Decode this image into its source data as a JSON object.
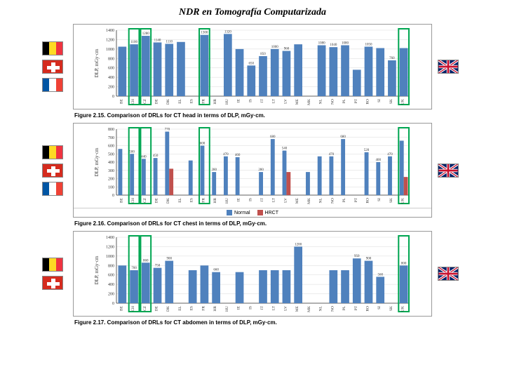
{
  "title": "NDR en Tomografía Computarizada",
  "colors": {
    "bar": "#4f81bd",
    "bar2": "#c0504d",
    "highlight_stroke": "#00a651",
    "axis": "#333333",
    "grid": "#d9d9d9",
    "be": [
      "#000000",
      "#fdda24",
      "#ef3340"
    ],
    "ch_bg": "#d52b1e",
    "fr": [
      "#0055a4",
      "#ffffff",
      "#ef4135"
    ],
    "uk_bg": "#012169",
    "uk_red": "#c8102e",
    "uk_white": "#ffffff"
  },
  "countries": [
    "BE",
    "CH",
    "CZ",
    "DE",
    "DK",
    "EL",
    "ES",
    "FR",
    "HR",
    "HU",
    "IE",
    "IS",
    "IT",
    "LT",
    "LV",
    "ME",
    "MK",
    "NL",
    "NO",
    "PL",
    "PT",
    "RO",
    "SI",
    "SK",
    "UK"
  ],
  "charts": [
    {
      "ylabel": "DLP, mGy·cm",
      "ymax": 1400,
      "ytick": 200,
      "caption": "Figure 2.15.  Comparison of DRLs for CT head in terms of DLP,  mGy·cm.",
      "highlights": [
        "CH",
        "CZ",
        "FR",
        "UK"
      ],
      "series": [
        {
          "name": "Normal",
          "color_key": "bar",
          "values": {
            "BE": 1050,
            "CH": 1100,
            "CZ": 1280,
            "DE": 1140,
            "DK": 1110,
            "EL": 1150,
            "FR": 1300,
            "HU": 1320,
            "IE": 1000,
            "IS": 650,
            "IT": 850,
            "LT": 1000,
            "LV": 960,
            "ME": 1100,
            "NL": 1080,
            "NO": 1040,
            "PL": 1080,
            "PT": 560,
            "RO": 1050,
            "SI": 1020,
            "SK": 760,
            "UK": 1020
          }
        }
      ],
      "labels": {
        "CH": "1100",
        "CZ": "1280",
        "DE": "1140",
        "DK": "1110",
        "FR": "1300",
        "HU": "1320",
        "IS": "650",
        "IT": "850",
        "LT": "1000",
        "LV": "960",
        "NL": "1080",
        "NO": "1040",
        "PL": "1080",
        "RO": "1050",
        "SK": "760"
      }
    },
    {
      "ylabel": "DLP, mGy·cm",
      "ymax": 800,
      "ytick": 100,
      "caption": "Figure 2.16.  Comparison of DRLs for CT chest in terms of DLP,  mGy·cm.",
      "highlights": [
        "CH",
        "CZ",
        "FR",
        "UK"
      ],
      "legend": [
        {
          "label": "Normal",
          "color_key": "bar"
        },
        {
          "label": "HRCT",
          "color_key": "bar2"
        }
      ],
      "series": [
        {
          "name": "Normal",
          "color_key": "bar",
          "values": {
            "BE": 560,
            "CH": 500,
            "CZ": 440,
            "DE": 450,
            "DK": 770,
            "ES": 420,
            "FR": 600,
            "HR": 280,
            "HU": 470,
            "IE": 460,
            "IT": 280,
            "LT": 680,
            "LV": 540,
            "MK": 280,
            "NL": 470,
            "NO": 470,
            "PL": 680,
            "RO": 520,
            "SI": 400,
            "SK": 470,
            "UK": 660
          }
        },
        {
          "name": "HRCT",
          "color_key": "bar2",
          "values": {
            "DK": 320,
            "LV": 280,
            "UK": 220
          }
        }
      ],
      "labels": {
        "CH": "500",
        "CZ": "440",
        "DE": "450",
        "DK": "770",
        "FR": "600",
        "HR": "280",
        "HU": "470",
        "IE": "460",
        "IT": "280",
        "LT": "680",
        "LV": "540",
        "NO": "470",
        "PL": "680",
        "RO": "520",
        "SI": "400",
        "SK": "470"
      }
    },
    {
      "ylabel": "DLP, mGy·cm",
      "ymax": 1400,
      "ytick": 200,
      "caption": "Figure 2.17.  Comparison of DRLs for CT abdomen in terms of DLP,  mGy·cm.",
      "highlights": [
        "CH",
        "CZ",
        "UK"
      ],
      "series": [
        {
          "name": "Normal",
          "color_key": "bar",
          "values": {
            "BE": 800,
            "CH": 700,
            "CZ": 860,
            "DE": 750,
            "DK": 900,
            "ES": 700,
            "FR": 800,
            "HR": 660,
            "IE": 660,
            "IT": 700,
            "LT": 700,
            "LV": 700,
            "ME": 1200,
            "NO": 700,
            "PL": 700,
            "PT": 950,
            "RO": 900,
            "SI": 560,
            "UK": 800
          }
        }
      ],
      "labels": {
        "CH": "700",
        "CZ": "860",
        "DE": "750",
        "DK": "900",
        "HR": "660",
        "ME": "1200",
        "PT": "950",
        "RO": "900",
        "SI": "560",
        "UK": "800"
      }
    }
  ]
}
